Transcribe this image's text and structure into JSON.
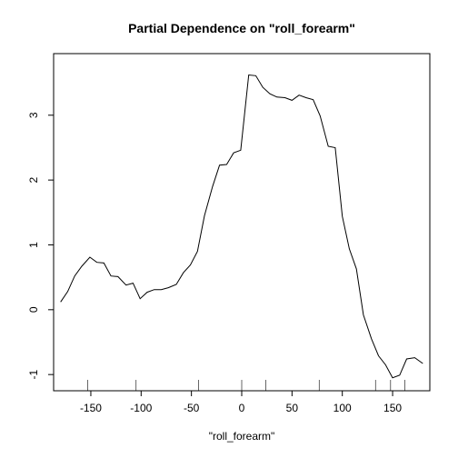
{
  "chart_data": {
    "type": "line",
    "title": "Partial Dependence on \"roll_forearm\"",
    "xlabel": "\"roll_forearm\"",
    "ylabel": "",
    "xlim": [
      -187,
      187
    ],
    "ylim": [
      -1.25,
      3.95
    ],
    "xticks": [
      -150,
      -100,
      -50,
      0,
      50,
      100,
      150
    ],
    "yticks": [
      -1,
      0,
      1,
      2,
      3
    ],
    "grid": false,
    "series": [
      {
        "color": "#000000",
        "x": [
          -180,
          -173,
          -166,
          -159,
          -151,
          -144,
          -137,
          -130,
          -123,
          -115,
          -108,
          -101,
          -94,
          -87,
          -80,
          -73,
          -65,
          -58,
          -51,
          -44,
          -37,
          -29,
          -22,
          -15,
          -8,
          -1,
          7,
          14,
          21,
          28,
          35,
          43,
          50,
          57,
          64,
          71,
          78,
          86,
          93,
          100,
          107,
          114,
          121,
          129,
          136,
          143,
          150,
          157,
          164,
          172,
          180
        ],
        "y": [
          0.12,
          0.28,
          0.52,
          0.67,
          0.81,
          0.73,
          0.72,
          0.52,
          0.51,
          0.38,
          0.41,
          0.17,
          0.27,
          0.31,
          0.31,
          0.34,
          0.39,
          0.57,
          0.69,
          0.9,
          1.45,
          1.9,
          2.23,
          2.24,
          2.42,
          2.46,
          3.62,
          3.61,
          3.43,
          3.33,
          3.28,
          3.27,
          3.23,
          3.31,
          3.27,
          3.24,
          2.99,
          2.52,
          2.5,
          1.44,
          0.94,
          0.63,
          -0.08,
          -0.45,
          -0.71,
          -0.85,
          -1.05,
          -1.01,
          -0.76,
          -0.74,
          -0.83
        ]
      }
    ],
    "rug": [
      -153,
      -105,
      -43,
      0,
      24,
      77,
      133,
      148,
      162
    ]
  }
}
